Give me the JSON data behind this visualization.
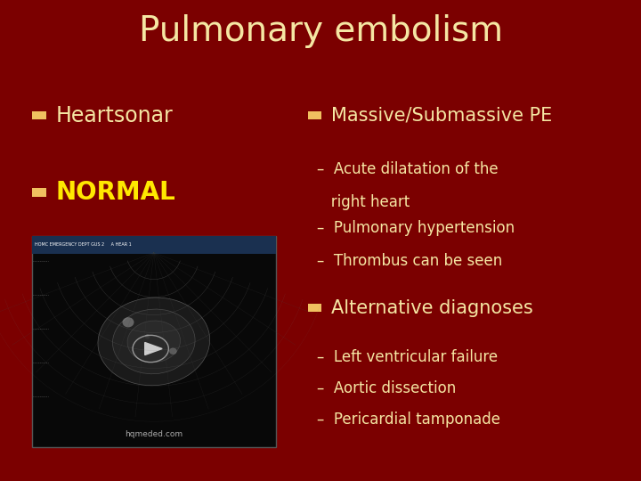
{
  "title": "Pulmonary embolism",
  "title_color": "#F5E6A3",
  "title_fontsize": 28,
  "background_color": "#7B0000",
  "bullet_color": "#F0C060",
  "text_color": "#F5E6A3",
  "yellow_text_color": "#FFE800",
  "left_bullets": [
    {
      "text": "Heartsonar",
      "color": "#F5E6A3",
      "bold": false,
      "fontsize": 17
    },
    {
      "text": "NORMAL",
      "color": "#FFE800",
      "bold": true,
      "fontsize": 20
    }
  ],
  "right_section1_bullet": "Massive/Submassive PE",
  "right_section1_sub": [
    "Acute dilatation of the",
    "  right heart",
    "Pulmonary hypertension",
    "Thrombus can be seen"
  ],
  "right_section2_bullet": "Alternative diagnoses",
  "right_section2_sub": [
    "Left ventricular failure",
    "Aortic dissection",
    "Pericardial tamponade"
  ],
  "sub_fontsize": 12,
  "bullet_fontsize": 15,
  "sq_size": 0.018
}
